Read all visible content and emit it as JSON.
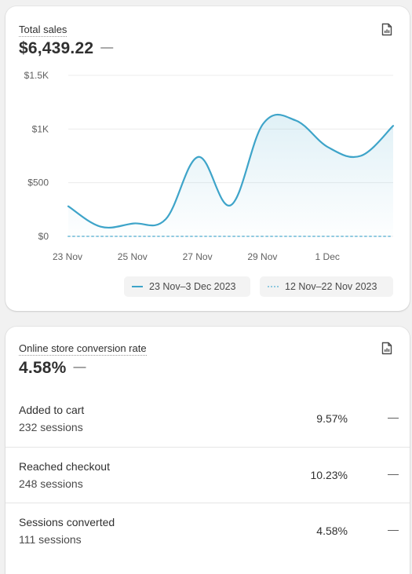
{
  "sales_card": {
    "title": "Total sales",
    "value": "$6,439.22",
    "change": "—",
    "icon": "report-icon"
  },
  "chart_data": {
    "type": "line",
    "x": [
      "23 Nov",
      "24 Nov",
      "25 Nov",
      "26 Nov",
      "27 Nov",
      "28 Nov",
      "29 Nov",
      "30 Nov",
      "1 Dec",
      "2 Dec",
      "3 Dec"
    ],
    "xticks": [
      "23 Nov",
      "25 Nov",
      "27 Nov",
      "29 Nov",
      "1 Dec"
    ],
    "yticks": [
      "$0",
      "$500",
      "$1K",
      "$1.5K"
    ],
    "ylim": [
      0,
      1500
    ],
    "grid": true,
    "series": [
      {
        "name": "23 Nov–3 Dec 2023",
        "values": [
          280,
          90,
          120,
          160,
          740,
          290,
          1050,
          1080,
          830,
          750,
          1030
        ],
        "color": "#3ea4c9",
        "style": "solid"
      },
      {
        "name": "12 Nov–22 Nov 2023",
        "values": [
          0,
          0,
          0,
          0,
          0,
          0,
          0,
          0,
          0,
          0,
          0
        ],
        "color": "#8fcae0",
        "style": "dotted"
      }
    ],
    "legend_position": "bottom-right"
  },
  "conversion_card": {
    "title": "Online store conversion rate",
    "value": "4.58%",
    "change": "—",
    "icon": "report-icon",
    "rows": [
      {
        "label": "Added to cart",
        "sessions": "232 sessions",
        "value": "9.57%",
        "change": "—"
      },
      {
        "label": "Reached checkout",
        "sessions": "248 sessions",
        "value": "10.23%",
        "change": "—"
      },
      {
        "label": "Sessions converted",
        "sessions": "111 sessions",
        "value": "4.58%",
        "change": "—"
      }
    ]
  }
}
